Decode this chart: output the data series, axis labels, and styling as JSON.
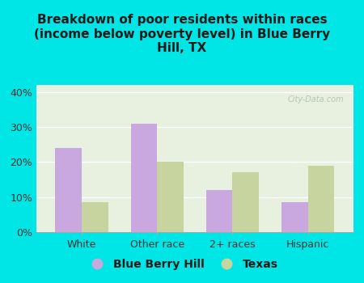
{
  "title": "Breakdown of poor residents within races\n(income below poverty level) in Blue Berry\nHill, TX",
  "categories": [
    "White",
    "Other race",
    "2+ races",
    "Hispanic"
  ],
  "blue_berry_hill": [
    24,
    31,
    12,
    8.5
  ],
  "texas": [
    8.5,
    20,
    17,
    19
  ],
  "bbh_color": "#c9a8e0",
  "texas_color": "#c8d4a0",
  "background_color": "#00e5e5",
  "plot_bg_color": "#e8f0e0",
  "ylim": [
    0,
    42
  ],
  "yticks": [
    0,
    10,
    20,
    30,
    40
  ],
  "ytick_labels": [
    "0%",
    "10%",
    "20%",
    "30%",
    "40%"
  ],
  "bar_width": 0.35,
  "legend_labels": [
    "Blue Berry Hill",
    "Texas"
  ],
  "watermark": "City-Data.com"
}
